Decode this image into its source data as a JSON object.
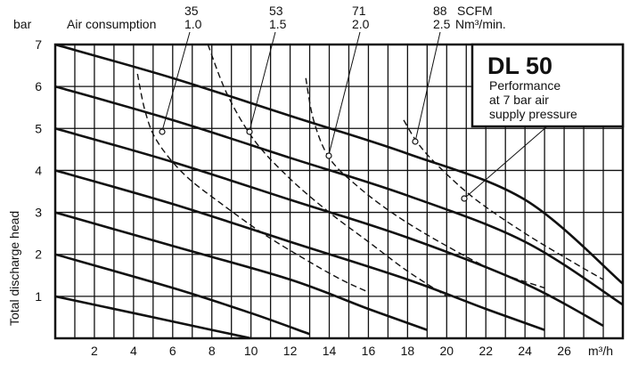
{
  "chart_data": {
    "type": "line",
    "title": "DL 50",
    "subtitle": [
      "Performance",
      "at 7 bar air",
      "supply pressure"
    ],
    "ylabel": "Total discharge head",
    "y_unit": "bar",
    "x_unit": "m³/h",
    "xlim": [
      0,
      29
    ],
    "ylim": [
      0,
      7
    ],
    "x_ticks": [
      "2",
      "4",
      "6",
      "8",
      "10",
      "12",
      "14",
      "16",
      "18",
      "20",
      "22",
      "24",
      "26"
    ],
    "y_ticks": [
      "1",
      "2",
      "3",
      "4",
      "5",
      "6",
      "7"
    ],
    "grid": true,
    "air_consumption_label": "Air consumption",
    "air_consumption": [
      {
        "scfm": "35",
        "nm3": "1.0",
        "curve": [
          [
            4.2,
            6.3
          ],
          [
            4.6,
            5.4
          ],
          [
            5.2,
            4.7
          ],
          [
            6.6,
            3.9
          ],
          [
            8.5,
            3.2
          ],
          [
            10.6,
            2.5
          ],
          [
            12.7,
            1.9
          ],
          [
            14.6,
            1.4
          ],
          [
            16.0,
            1.1
          ]
        ]
      },
      {
        "scfm": "53",
        "nm3": "1.5",
        "curve": [
          [
            7.8,
            7.0
          ],
          [
            8.8,
            5.8
          ],
          [
            10.2,
            4.7
          ],
          [
            12.0,
            3.8
          ],
          [
            14.0,
            3.0
          ],
          [
            16.0,
            2.3
          ],
          [
            18.0,
            1.6
          ],
          [
            20.0,
            1.0
          ]
        ]
      },
      {
        "scfm": "71",
        "nm3": "2.0",
        "curve": [
          [
            12.8,
            6.2
          ],
          [
            13.2,
            5.2
          ],
          [
            14.0,
            4.3
          ],
          [
            15.5,
            3.6
          ],
          [
            17.5,
            2.9
          ],
          [
            20.0,
            2.2
          ],
          [
            22.5,
            1.6
          ],
          [
            25.0,
            1.2
          ]
        ]
      },
      {
        "scfm": "88",
        "nm3": "2.5",
        "unit": "SCFM",
        "unit2": "Nm³/min.",
        "curve": [
          [
            17.8,
            5.2
          ],
          [
            18.6,
            4.6
          ],
          [
            19.8,
            4.0
          ],
          [
            21.5,
            3.3
          ],
          [
            24.0,
            2.5
          ],
          [
            26.5,
            1.8
          ],
          [
            28.0,
            1.4
          ]
        ]
      }
    ],
    "series": [
      {
        "values": [
          [
            0,
            7.0
          ],
          [
            6,
            6.2
          ],
          [
            12,
            5.3
          ],
          [
            18,
            4.4
          ],
          [
            24,
            3.3
          ],
          [
            29,
            1.3
          ]
        ]
      },
      {
        "values": [
          [
            0,
            6.0
          ],
          [
            6,
            5.2
          ],
          [
            12,
            4.3
          ],
          [
            18,
            3.4
          ],
          [
            24,
            2.3
          ],
          [
            29,
            0.8
          ]
        ]
      },
      {
        "values": [
          [
            0,
            5.0
          ],
          [
            6,
            4.2
          ],
          [
            12,
            3.3
          ],
          [
            18,
            2.4
          ],
          [
            24,
            1.3
          ],
          [
            28,
            0.3
          ]
        ]
      },
      {
        "values": [
          [
            0,
            4.0
          ],
          [
            6,
            3.2
          ],
          [
            12,
            2.3
          ],
          [
            18,
            1.4
          ],
          [
            22,
            0.7
          ],
          [
            25,
            0.2
          ]
        ]
      },
      {
        "values": [
          [
            0,
            3.0
          ],
          [
            6,
            2.2
          ],
          [
            12,
            1.4
          ],
          [
            16,
            0.7
          ],
          [
            19,
            0.2
          ]
        ]
      },
      {
        "values": [
          [
            0,
            2.0
          ],
          [
            6,
            1.2
          ],
          [
            10,
            0.6
          ],
          [
            13,
            0.1
          ]
        ]
      },
      {
        "values": [
          [
            0,
            1.0
          ],
          [
            4,
            0.6
          ],
          [
            8,
            0.2
          ],
          [
            10,
            0.0
          ]
        ]
      }
    ]
  }
}
